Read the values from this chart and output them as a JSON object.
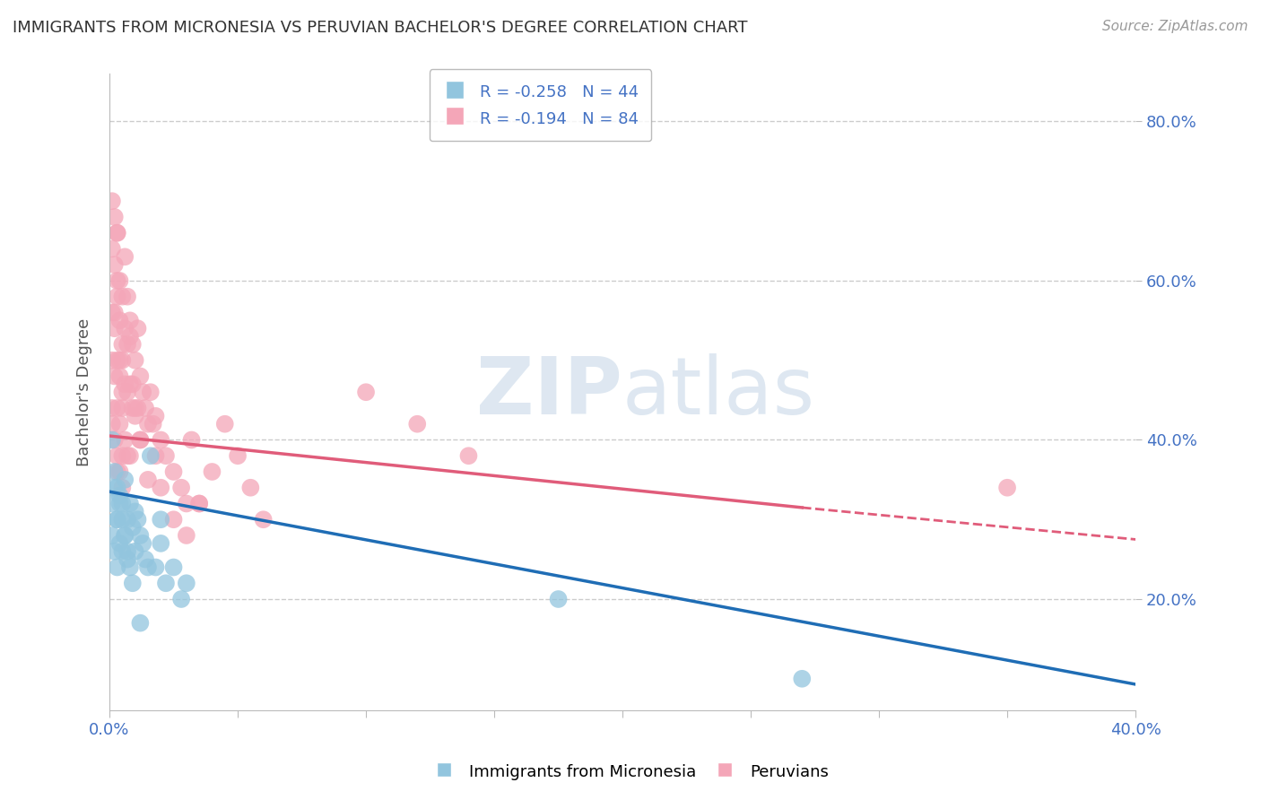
{
  "title": "IMMIGRANTS FROM MICRONESIA VS PERUVIAN BACHELOR'S DEGREE CORRELATION CHART",
  "source": "Source: ZipAtlas.com",
  "ylabel": "Bachelor's Degree",
  "right_yticks": [
    "80.0%",
    "60.0%",
    "40.0%",
    "20.0%"
  ],
  "right_ytick_vals": [
    0.8,
    0.6,
    0.4,
    0.2
  ],
  "legend_blue_label": "Immigrants from Micronesia",
  "legend_pink_label": "Peruvians",
  "legend_R_blue": "R = -0.258",
  "legend_N_blue": "N = 44",
  "legend_R_pink": "R = -0.194",
  "legend_N_pink": "N = 84",
  "blue_color": "#92c5de",
  "pink_color": "#f4a6b8",
  "blue_line_color": "#1f6db5",
  "pink_line_color": "#e05c7a",
  "watermark_zip": "ZIP",
  "watermark_atlas": "atlas",
  "xlim": [
    0.0,
    0.4
  ],
  "ylim": [
    0.06,
    0.86
  ],
  "blue_line_x0": 0.0,
  "blue_line_y0": 0.335,
  "blue_line_x1": 0.4,
  "blue_line_y1": 0.093,
  "pink_line_x0": 0.0,
  "pink_line_y0": 0.405,
  "pink_line_solid_x1": 0.27,
  "pink_line_solid_y1": 0.315,
  "pink_line_dash_x1": 0.4,
  "pink_line_dash_y1": 0.275,
  "blue_scatter_x": [
    0.001,
    0.001,
    0.002,
    0.002,
    0.003,
    0.003,
    0.004,
    0.004,
    0.005,
    0.005,
    0.006,
    0.006,
    0.007,
    0.007,
    0.008,
    0.009,
    0.01,
    0.01,
    0.011,
    0.012,
    0.013,
    0.014,
    0.015,
    0.016,
    0.018,
    0.02,
    0.022,
    0.025,
    0.028,
    0.03,
    0.001,
    0.002,
    0.003,
    0.003,
    0.004,
    0.005,
    0.006,
    0.007,
    0.008,
    0.009,
    0.012,
    0.02,
    0.175,
    0.27
  ],
  "blue_scatter_y": [
    0.32,
    0.28,
    0.34,
    0.26,
    0.3,
    0.24,
    0.33,
    0.27,
    0.32,
    0.26,
    0.35,
    0.28,
    0.3,
    0.25,
    0.32,
    0.29,
    0.31,
    0.26,
    0.3,
    0.28,
    0.27,
    0.25,
    0.24,
    0.38,
    0.24,
    0.27,
    0.22,
    0.24,
    0.2,
    0.22,
    0.4,
    0.36,
    0.34,
    0.3,
    0.32,
    0.3,
    0.28,
    0.26,
    0.24,
    0.22,
    0.17,
    0.3,
    0.2,
    0.1
  ],
  "pink_scatter_x": [
    0.001,
    0.001,
    0.001,
    0.002,
    0.002,
    0.002,
    0.003,
    0.003,
    0.003,
    0.003,
    0.003,
    0.004,
    0.004,
    0.004,
    0.004,
    0.005,
    0.005,
    0.005,
    0.005,
    0.005,
    0.006,
    0.006,
    0.006,
    0.007,
    0.007,
    0.007,
    0.008,
    0.008,
    0.008,
    0.009,
    0.009,
    0.01,
    0.01,
    0.011,
    0.011,
    0.012,
    0.012,
    0.013,
    0.014,
    0.015,
    0.016,
    0.017,
    0.018,
    0.02,
    0.022,
    0.025,
    0.028,
    0.03,
    0.032,
    0.035,
    0.001,
    0.001,
    0.002,
    0.002,
    0.003,
    0.003,
    0.004,
    0.004,
    0.005,
    0.005,
    0.006,
    0.007,
    0.008,
    0.009,
    0.01,
    0.012,
    0.015,
    0.018,
    0.02,
    0.025,
    0.03,
    0.035,
    0.04,
    0.045,
    0.05,
    0.055,
    0.06,
    0.1,
    0.12,
    0.14,
    0.001,
    0.002,
    0.003,
    0.35
  ],
  "pink_scatter_y": [
    0.5,
    0.44,
    0.42,
    0.56,
    0.48,
    0.4,
    0.6,
    0.5,
    0.44,
    0.38,
    0.36,
    0.55,
    0.48,
    0.42,
    0.36,
    0.58,
    0.5,
    0.44,
    0.38,
    0.34,
    0.54,
    0.47,
    0.4,
    0.52,
    0.46,
    0.38,
    0.55,
    0.47,
    0.38,
    0.52,
    0.44,
    0.5,
    0.43,
    0.54,
    0.44,
    0.48,
    0.4,
    0.46,
    0.44,
    0.42,
    0.46,
    0.42,
    0.43,
    0.4,
    0.38,
    0.36,
    0.34,
    0.32,
    0.4,
    0.32,
    0.64,
    0.56,
    0.62,
    0.54,
    0.66,
    0.58,
    0.5,
    0.6,
    0.52,
    0.46,
    0.63,
    0.58,
    0.53,
    0.47,
    0.44,
    0.4,
    0.35,
    0.38,
    0.34,
    0.3,
    0.28,
    0.32,
    0.36,
    0.42,
    0.38,
    0.34,
    0.3,
    0.46,
    0.42,
    0.38,
    0.7,
    0.68,
    0.66,
    0.34
  ]
}
